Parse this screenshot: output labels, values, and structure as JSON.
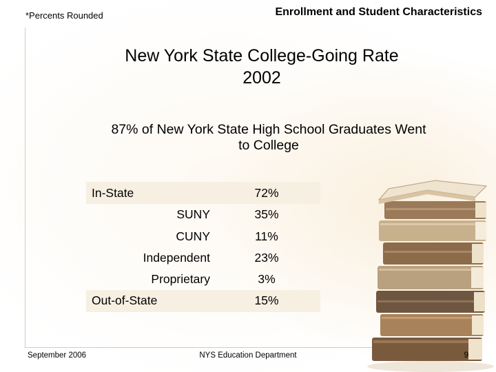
{
  "header": {
    "note": "*Percents Rounded",
    "section_title": "Enrollment and Student Characteristics"
  },
  "title": {
    "line1": "New York State College-Going Rate",
    "line2": "2002"
  },
  "subtitle": {
    "line1": "87% of New York State High School Graduates Went",
    "line2": "to College"
  },
  "table": {
    "rows": [
      {
        "label": "In-State",
        "value": "72%"
      },
      {
        "label": "SUNY",
        "value": "35%"
      },
      {
        "label": "CUNY",
        "value": "11%"
      },
      {
        "label": "Independent",
        "value": "23%"
      },
      {
        "label": "Proprietary",
        "value": "3%"
      },
      {
        "label": "Out-of-State",
        "value": "15%"
      }
    ]
  },
  "footer": {
    "date": "September 2006",
    "organization": "NYS Education Department",
    "page_number": "9"
  },
  "colors": {
    "band": "#f7efe2",
    "frame_line": "#d8cbb6"
  },
  "illustration": "stack-of-books-image"
}
